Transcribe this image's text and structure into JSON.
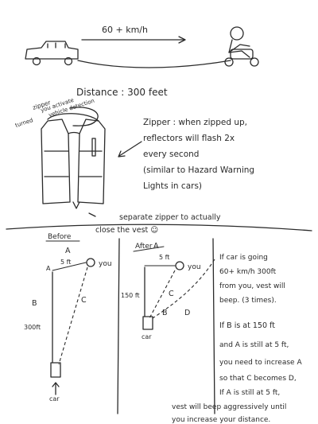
{
  "speed": "60 + km/h",
  "distance": "Distance : 300 feet",
  "zipper_note": [
    "zipper",
    "- zipper",
    "turned",
    "you activate",
    "vehicle detection"
  ],
  "zipper_desc": [
    "Zipper : when zipped up,",
    "reflectors will flash 2x",
    "every second",
    "(similar to Hazard Warning",
    "Lights in cars)"
  ],
  "separate_zipper": [
    "separate zipper to actually",
    "close the vest ☺"
  ],
  "before": {
    "title": "Before",
    "label_a": "A",
    "label_5ft": "5 ft",
    "you": "you",
    "label_b": "B",
    "label_300": "300ft",
    "label_c": "C",
    "car": "car"
  },
  "after": {
    "title": "After",
    "label_a": "A",
    "label_5ft": "5 ft",
    "you": "you",
    "label_150": "150 ft",
    "label_c": "C",
    "label_b": "B",
    "label_d": "D",
    "car": "car"
  },
  "notes": [
    "If car is going",
    "60+ km/h 300ft",
    "from you, vest will",
    "beep. (3 times).",
    "If  B  is at 150 ft",
    "and A is still at 5 ft,",
    "you need to increase A",
    "so that C becomes D,",
    "If A is still at 5 ft,"
  ],
  "notes_wide": [
    "vest will beep aggressively until",
    "you increase your distance."
  ]
}
